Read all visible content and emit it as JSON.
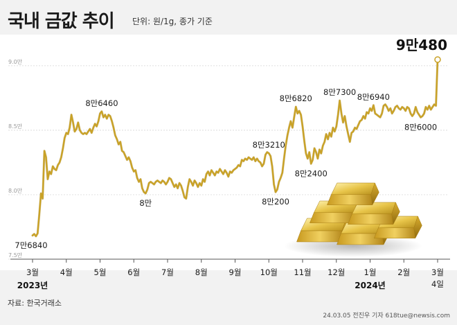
{
  "header": {
    "title": "국내 금값 추이",
    "unit": "단위: 원/1g, 종가 기준"
  },
  "footer": {
    "source": "자료: 한국거래소",
    "credit": "24.03.05 전진우 기자 618tue@newsis.com"
  },
  "chart_data": {
    "type": "line",
    "title": "국내 금값 추이",
    "unit": "원/1g",
    "y_ticks": [
      {
        "value": 75000,
        "label": "7.5만"
      },
      {
        "value": 80000,
        "label": "8.0만"
      },
      {
        "value": 85000,
        "label": "8.5만"
      },
      {
        "value": 90000,
        "label": "9.0만"
      }
    ],
    "ylim": [
      75000,
      91500
    ],
    "x_ticks": [
      {
        "label": "3월",
        "t": 0
      },
      {
        "label": "4월",
        "t": 1
      },
      {
        "label": "5월",
        "t": 2
      },
      {
        "label": "6월",
        "t": 3
      },
      {
        "label": "7월",
        "t": 4
      },
      {
        "label": "8월",
        "t": 5
      },
      {
        "label": "9월",
        "t": 6
      },
      {
        "label": "10월",
        "t": 7
      },
      {
        "label": "11월",
        "t": 8
      },
      {
        "label": "12월",
        "t": 9
      },
      {
        "label": "1월",
        "t": 10
      },
      {
        "label": "2월",
        "t": 11
      },
      {
        "label": "3월",
        "t": 12
      }
    ],
    "year_labels": [
      {
        "label": "2023년",
        "t": 0
      },
      {
        "label": "2024년",
        "t": 10
      }
    ],
    "end_label": "4일",
    "series": [
      {
        "color": "#c9a227",
        "points": [
          [
            0.0,
            76840
          ],
          [
            0.05,
            76950
          ],
          [
            0.1,
            76780
          ],
          [
            0.15,
            77000
          ],
          [
            0.2,
            78500
          ],
          [
            0.25,
            80100
          ],
          [
            0.3,
            79700
          ],
          [
            0.35,
            83400
          ],
          [
            0.4,
            82900
          ],
          [
            0.45,
            81200
          ],
          [
            0.5,
            81800
          ],
          [
            0.55,
            81600
          ],
          [
            0.6,
            82200
          ],
          [
            0.65,
            82000
          ],
          [
            0.7,
            81900
          ],
          [
            0.75,
            82300
          ],
          [
            0.8,
            82500
          ],
          [
            0.85,
            82900
          ],
          [
            0.9,
            83600
          ],
          [
            0.95,
            84400
          ],
          [
            1.0,
            84800
          ],
          [
            1.05,
            84700
          ],
          [
            1.1,
            85200
          ],
          [
            1.15,
            86200
          ],
          [
            1.2,
            85600
          ],
          [
            1.25,
            84900
          ],
          [
            1.3,
            85100
          ],
          [
            1.35,
            85600
          ],
          [
            1.4,
            85000
          ],
          [
            1.45,
            84800
          ],
          [
            1.5,
            84700
          ],
          [
            1.55,
            84800
          ],
          [
            1.6,
            84700
          ],
          [
            1.65,
            84900
          ],
          [
            1.7,
            85100
          ],
          [
            1.75,
            84800
          ],
          [
            1.8,
            85200
          ],
          [
            1.85,
            85500
          ],
          [
            1.9,
            85300
          ],
          [
            1.95,
            85700
          ],
          [
            2.0,
            86300
          ],
          [
            2.05,
            86460
          ],
          [
            2.1,
            86000
          ],
          [
            2.15,
            86200
          ],
          [
            2.2,
            85900
          ],
          [
            2.25,
            86200
          ],
          [
            2.3,
            86100
          ],
          [
            2.35,
            85700
          ],
          [
            2.4,
            85200
          ],
          [
            2.45,
            84600
          ],
          [
            2.5,
            84300
          ],
          [
            2.55,
            83900
          ],
          [
            2.6,
            84100
          ],
          [
            2.65,
            83400
          ],
          [
            2.7,
            83300
          ],
          [
            2.75,
            83000
          ],
          [
            2.8,
            82700
          ],
          [
            2.85,
            82900
          ],
          [
            2.9,
            82600
          ],
          [
            2.95,
            82100
          ],
          [
            3.0,
            81800
          ],
          [
            3.05,
            81900
          ],
          [
            3.1,
            81300
          ],
          [
            3.15,
            81000
          ],
          [
            3.2,
            81200
          ],
          [
            3.25,
            80500
          ],
          [
            3.3,
            80200
          ],
          [
            3.35,
            80100
          ],
          [
            3.4,
            80400
          ],
          [
            3.45,
            80900
          ],
          [
            3.5,
            81000
          ],
          [
            3.55,
            80900
          ],
          [
            3.6,
            80800
          ],
          [
            3.65,
            81000
          ],
          [
            3.7,
            81100
          ],
          [
            3.75,
            81000
          ],
          [
            3.8,
            80900
          ],
          [
            3.85,
            81100
          ],
          [
            3.9,
            81000
          ],
          [
            3.95,
            80800
          ],
          [
            4.0,
            81000
          ],
          [
            4.05,
            81300
          ],
          [
            4.1,
            81200
          ],
          [
            4.15,
            80900
          ],
          [
            4.2,
            80600
          ],
          [
            4.25,
            80800
          ],
          [
            4.3,
            80500
          ],
          [
            4.35,
            80900
          ],
          [
            4.4,
            80700
          ],
          [
            4.45,
            80300
          ],
          [
            4.5,
            79800
          ],
          [
            4.55,
            79700
          ],
          [
            4.6,
            80600
          ],
          [
            4.65,
            81200
          ],
          [
            4.7,
            81000
          ],
          [
            4.75,
            80700
          ],
          [
            4.8,
            81100
          ],
          [
            4.85,
            80900
          ],
          [
            4.9,
            80600
          ],
          [
            4.95,
            80900
          ],
          [
            5.0,
            80700
          ],
          [
            5.05,
            81200
          ],
          [
            5.1,
            81000
          ],
          [
            5.15,
            81600
          ],
          [
            5.2,
            81800
          ],
          [
            5.25,
            81500
          ],
          [
            5.3,
            81900
          ],
          [
            5.35,
            81700
          ],
          [
            5.4,
            81500
          ],
          [
            5.45,
            81800
          ],
          [
            5.5,
            81700
          ],
          [
            5.55,
            82000
          ],
          [
            5.6,
            81800
          ],
          [
            5.65,
            81600
          ],
          [
            5.7,
            81900
          ],
          [
            5.75,
            81700
          ],
          [
            5.8,
            81400
          ],
          [
            5.85,
            81800
          ],
          [
            5.9,
            81700
          ],
          [
            5.95,
            81900
          ],
          [
            6.0,
            82000
          ],
          [
            6.05,
            82100
          ],
          [
            6.1,
            82300
          ],
          [
            6.15,
            82200
          ],
          [
            6.2,
            82700
          ],
          [
            6.25,
            82600
          ],
          [
            6.3,
            82800
          ],
          [
            6.35,
            82700
          ],
          [
            6.4,
            82900
          ],
          [
            6.45,
            82800
          ],
          [
            6.5,
            82700
          ],
          [
            6.55,
            82900
          ],
          [
            6.6,
            82600
          ],
          [
            6.65,
            82800
          ],
          [
            6.7,
            82600
          ],
          [
            6.75,
            82500
          ],
          [
            6.8,
            82200
          ],
          [
            6.85,
            82400
          ],
          [
            6.9,
            83100
          ],
          [
            6.95,
            83300
          ],
          [
            7.0,
            83210
          ],
          [
            7.05,
            83000
          ],
          [
            7.1,
            82200
          ],
          [
            7.15,
            80800
          ],
          [
            7.2,
            80200
          ],
          [
            7.25,
            80400
          ],
          [
            7.3,
            81000
          ],
          [
            7.35,
            81300
          ],
          [
            7.4,
            81700
          ],
          [
            7.45,
            82800
          ],
          [
            7.5,
            83800
          ],
          [
            7.55,
            84600
          ],
          [
            7.6,
            85200
          ],
          [
            7.65,
            85700
          ],
          [
            7.7,
            85200
          ],
          [
            7.75,
            86000
          ],
          [
            7.8,
            86820
          ],
          [
            7.85,
            86300
          ],
          [
            7.9,
            86500
          ],
          [
            7.95,
            86200
          ],
          [
            8.0,
            85300
          ],
          [
            8.05,
            84200
          ],
          [
            8.1,
            83200
          ],
          [
            8.15,
            82800
          ],
          [
            8.2,
            83300
          ],
          [
            8.25,
            82400
          ],
          [
            8.3,
            82700
          ],
          [
            8.35,
            83600
          ],
          [
            8.4,
            83300
          ],
          [
            8.45,
            82800
          ],
          [
            8.5,
            83500
          ],
          [
            8.55,
            83200
          ],
          [
            8.6,
            83800
          ],
          [
            8.65,
            84100
          ],
          [
            8.7,
            84700
          ],
          [
            8.75,
            84300
          ],
          [
            8.8,
            84800
          ],
          [
            8.85,
            84500
          ],
          [
            8.9,
            85200
          ],
          [
            8.95,
            84900
          ],
          [
            9.0,
            85300
          ],
          [
            9.05,
            86200
          ],
          [
            9.1,
            87300
          ],
          [
            9.15,
            86300
          ],
          [
            9.2,
            85600
          ],
          [
            9.25,
            86100
          ],
          [
            9.3,
            85300
          ],
          [
            9.35,
            84700
          ],
          [
            9.4,
            84100
          ],
          [
            9.45,
            84800
          ],
          [
            9.5,
            84900
          ],
          [
            9.55,
            85200
          ],
          [
            9.6,
            85100
          ],
          [
            9.65,
            85400
          ],
          [
            9.7,
            85700
          ],
          [
            9.75,
            85800
          ],
          [
            9.8,
            86100
          ],
          [
            9.85,
            85900
          ],
          [
            9.9,
            86400
          ],
          [
            9.95,
            86300
          ],
          [
            10.0,
            86700
          ],
          [
            10.05,
            86500
          ],
          [
            10.1,
            86940
          ],
          [
            10.15,
            86300
          ],
          [
            10.2,
            86200
          ],
          [
            10.25,
            86100
          ],
          [
            10.3,
            86000
          ],
          [
            10.35,
            86300
          ],
          [
            10.4,
            86900
          ],
          [
            10.45,
            87000
          ],
          [
            10.5,
            86800
          ],
          [
            10.55,
            86500
          ],
          [
            10.6,
            86700
          ],
          [
            10.65,
            86300
          ],
          [
            10.7,
            86500
          ],
          [
            10.75,
            86800
          ],
          [
            10.8,
            86900
          ],
          [
            10.85,
            86700
          ],
          [
            10.9,
            86600
          ],
          [
            10.95,
            86800
          ],
          [
            11.0,
            86700
          ],
          [
            11.05,
            86500
          ],
          [
            11.1,
            86800
          ],
          [
            11.15,
            86700
          ],
          [
            11.2,
            86300
          ],
          [
            11.25,
            86100
          ],
          [
            11.3,
            86300
          ],
          [
            11.35,
            86800
          ],
          [
            11.4,
            86400
          ],
          [
            11.45,
            86200
          ],
          [
            11.5,
            86000
          ],
          [
            11.55,
            86100
          ],
          [
            11.6,
            86300
          ],
          [
            11.65,
            86800
          ],
          [
            11.7,
            86600
          ],
          [
            11.75,
            86900
          ],
          [
            11.8,
            86600
          ],
          [
            11.85,
            86800
          ],
          [
            11.9,
            87000
          ],
          [
            11.95,
            86900
          ],
          [
            12.0,
            90480
          ]
        ]
      }
    ],
    "annotations": [
      {
        "text": "7만6840",
        "t": 0.0,
        "value": 76840,
        "pos": "below"
      },
      {
        "text": "8만6460",
        "t": 2.05,
        "value": 86460,
        "pos": "above"
      },
      {
        "text": "8만",
        "t": 3.35,
        "value": 80100,
        "pos": "below"
      },
      {
        "text": "8만3210",
        "t": 7.0,
        "value": 83210,
        "pos": "above"
      },
      {
        "text": "8만200",
        "t": 7.2,
        "value": 80200,
        "pos": "below"
      },
      {
        "text": "8만6820",
        "t": 7.8,
        "value": 86820,
        "pos": "above"
      },
      {
        "text": "8만2400",
        "t": 8.25,
        "value": 82400,
        "pos": "below"
      },
      {
        "text": "8만7300",
        "t": 9.1,
        "value": 87300,
        "pos": "above"
      },
      {
        "text": "8만6940",
        "t": 10.1,
        "value": 86940,
        "pos": "above"
      },
      {
        "text": "8만6000",
        "t": 11.5,
        "value": 86000,
        "pos": "below"
      },
      {
        "text": "9만480",
        "t": 12.0,
        "value": 90480,
        "pos": "above",
        "big": true
      }
    ],
    "grid": true
  },
  "icons": [
    "gold-bars-icon"
  ]
}
